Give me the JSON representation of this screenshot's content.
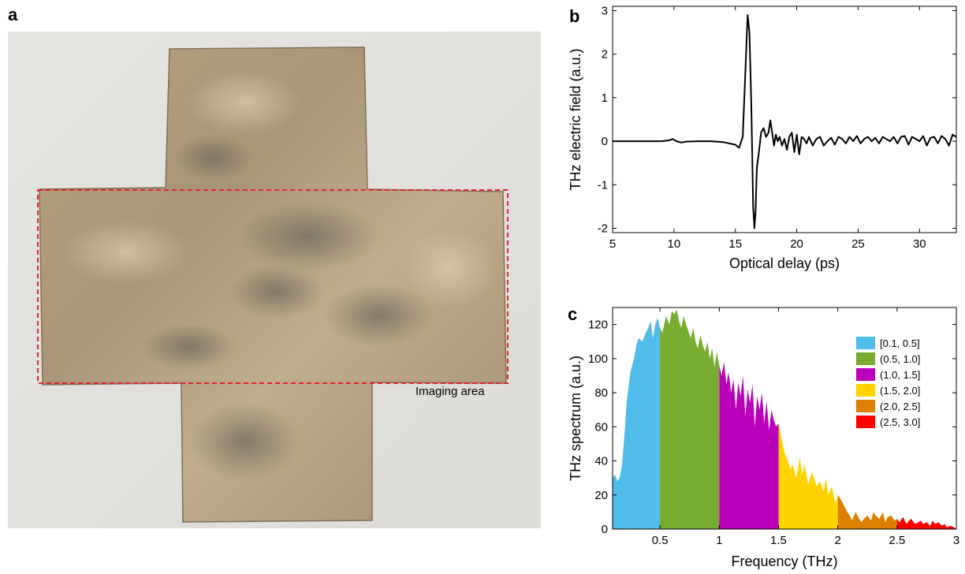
{
  "panels": {
    "a": "a",
    "b": "b",
    "c": "c"
  },
  "photo": {
    "annotation": "Imaging area",
    "box_color": "#e2232a"
  },
  "chart_data": [
    {
      "id": "b",
      "type": "line",
      "xlabel": "Optical delay (ps)",
      "ylabel": "THz electric field (a.u.)",
      "xlim": [
        5,
        33
      ],
      "ylim": [
        -2.1,
        3.1
      ],
      "xticks": [
        5,
        10,
        15,
        20,
        25,
        30
      ],
      "yticks": [
        -2,
        -1,
        0,
        1,
        2,
        3
      ],
      "series": [
        {
          "color": "#000000",
          "x": [
            5,
            6,
            7,
            8,
            9,
            9.6,
            9.9,
            10.2,
            10.6,
            11,
            12,
            13,
            14,
            15,
            15.3,
            15.6,
            15.8,
            16.0,
            16.15,
            16.3,
            16.45,
            16.55,
            16.65,
            16.75,
            16.9,
            17.1,
            17.3,
            17.5,
            17.7,
            17.85,
            18.0,
            18.15,
            18.3,
            18.45,
            18.6,
            18.8,
            19.0,
            19.2,
            19.4,
            19.6,
            19.8,
            20.0,
            20.2,
            20.4,
            20.6,
            20.8,
            21.0,
            21.3,
            21.6,
            21.9,
            22.2,
            22.5,
            22.8,
            23.1,
            23.4,
            23.7,
            24.0,
            24.3,
            24.6,
            24.9,
            25.2,
            25.5,
            25.8,
            26.1,
            26.4,
            26.7,
            27.0,
            27.3,
            27.6,
            27.9,
            28.2,
            28.5,
            28.8,
            29.1,
            29.4,
            29.7,
            30.0,
            30.3,
            30.6,
            30.9,
            31.2,
            31.5,
            31.8,
            32.1,
            32.4,
            32.7,
            33.0
          ],
          "y": [
            0,
            0,
            0,
            0,
            0,
            0.02,
            0.05,
            0.0,
            -0.03,
            -0.01,
            0,
            0,
            -0.02,
            -0.08,
            -0.15,
            0.1,
            1.5,
            2.9,
            2.5,
            0.8,
            -1.5,
            -2.0,
            -1.6,
            -0.6,
            -0.3,
            0.2,
            0.3,
            0.1,
            0.2,
            0.48,
            0.2,
            -0.1,
            0.15,
            0.0,
            0.1,
            -0.1,
            0.05,
            -0.2,
            0.1,
            0.2,
            -0.25,
            0.15,
            -0.3,
            0.1,
            0.05,
            -0.05,
            0.1,
            -0.1,
            0.05,
            0.1,
            -0.1,
            0.0,
            0.08,
            -0.08,
            0.1,
            0.05,
            -0.05,
            0.1,
            0.0,
            0.12,
            -0.05,
            0.05,
            0.1,
            0.0,
            0.08,
            -0.05,
            0.1,
            0.05,
            0.0,
            0.1,
            -0.05,
            0.1,
            0.12,
            -0.08,
            0.1,
            0.05,
            0.0,
            0.12,
            -0.1,
            0.08,
            0.1,
            -0.05,
            0.12,
            0.05,
            -0.1,
            0.15,
            0.1
          ]
        }
      ]
    },
    {
      "id": "c",
      "type": "area",
      "xlabel": "Frequency (THz)",
      "ylabel": "THz spectrum (a.u.)",
      "xlim": [
        0.1,
        3.0
      ],
      "ylim": [
        0,
        130
      ],
      "xticks": [
        0.5,
        1,
        1.5,
        2,
        2.5,
        3
      ],
      "xticklabels": [
        "0.5",
        "1",
        "1.5",
        "2",
        "2.5",
        "3"
      ],
      "yticks": [
        0,
        20,
        40,
        60,
        80,
        100,
        120
      ],
      "legend_position": "top-right",
      "bands": [
        {
          "name": "[0.1, 0.5]",
          "range": [
            0.1,
            0.5
          ],
          "color": "#4fbce9"
        },
        {
          "name": "(0.5, 1.0]",
          "range": [
            0.5,
            1.0
          ],
          "color": "#77ac30"
        },
        {
          "name": "(1.0, 1.5]",
          "range": [
            1.0,
            1.5
          ],
          "color": "#bb00bb"
        },
        {
          "name": "(1.5, 2.0]",
          "range": [
            1.5,
            2.0
          ],
          "color": "#ffd200"
        },
        {
          "name": "(2.0, 2.5]",
          "range": [
            2.0,
            2.5
          ],
          "color": "#dd7f00"
        },
        {
          "name": "(2.5, 3.0]",
          "range": [
            2.5,
            3.0
          ],
          "color": "#ff0000"
        }
      ],
      "x": [
        0.1,
        0.12,
        0.14,
        0.16,
        0.18,
        0.2,
        0.22,
        0.25,
        0.28,
        0.3,
        0.32,
        0.35,
        0.38,
        0.4,
        0.42,
        0.44,
        0.46,
        0.48,
        0.5,
        0.52,
        0.55,
        0.58,
        0.6,
        0.62,
        0.64,
        0.66,
        0.68,
        0.7,
        0.72,
        0.74,
        0.76,
        0.78,
        0.8,
        0.82,
        0.84,
        0.86,
        0.88,
        0.9,
        0.92,
        0.94,
        0.96,
        0.98,
        1.0,
        1.02,
        1.04,
        1.06,
        1.08,
        1.1,
        1.12,
        1.14,
        1.16,
        1.18,
        1.2,
        1.22,
        1.24,
        1.26,
        1.28,
        1.3,
        1.32,
        1.34,
        1.36,
        1.38,
        1.4,
        1.42,
        1.44,
        1.46,
        1.48,
        1.5,
        1.52,
        1.55,
        1.58,
        1.6,
        1.62,
        1.65,
        1.68,
        1.7,
        1.72,
        1.75,
        1.78,
        1.8,
        1.82,
        1.85,
        1.88,
        1.9,
        1.92,
        1.95,
        1.98,
        2.0,
        2.02,
        2.05,
        2.08,
        2.1,
        2.12,
        2.15,
        2.18,
        2.2,
        2.22,
        2.25,
        2.28,
        2.3,
        2.32,
        2.35,
        2.38,
        2.4,
        2.42,
        2.45,
        2.48,
        2.5,
        2.52,
        2.55,
        2.58,
        2.6,
        2.62,
        2.65,
        2.68,
        2.7,
        2.72,
        2.75,
        2.78,
        2.8,
        2.82,
        2.85,
        2.88,
        2.9,
        2.92,
        2.95,
        2.98,
        3.0
      ],
      "y": [
        30,
        32,
        28,
        30,
        38,
        55,
        75,
        92,
        100,
        108,
        112,
        110,
        115,
        118,
        122,
        112,
        120,
        124,
        118,
        115,
        125,
        120,
        128,
        126,
        129,
        122,
        118,
        125,
        120,
        116,
        112,
        118,
        110,
        106,
        114,
        108,
        104,
        110,
        100,
        106,
        95,
        104,
        96,
        90,
        98,
        85,
        92,
        80,
        88,
        70,
        86,
        78,
        90,
        66,
        82,
        74,
        85,
        60,
        78,
        70,
        80,
        62,
        75,
        58,
        70,
        64,
        60,
        62,
        55,
        45,
        40,
        35,
        38,
        30,
        42,
        32,
        38,
        26,
        33,
        30,
        25,
        28,
        22,
        30,
        20,
        25,
        15,
        20,
        18,
        14,
        10,
        8,
        5,
        10,
        6,
        4,
        6,
        8,
        5,
        10,
        8,
        6,
        10,
        4,
        7,
        8,
        5,
        6,
        4,
        7,
        3,
        5,
        6,
        3,
        4,
        5,
        3,
        4,
        2,
        5,
        3,
        4,
        2,
        3,
        1,
        2,
        1,
        0
      ]
    }
  ]
}
